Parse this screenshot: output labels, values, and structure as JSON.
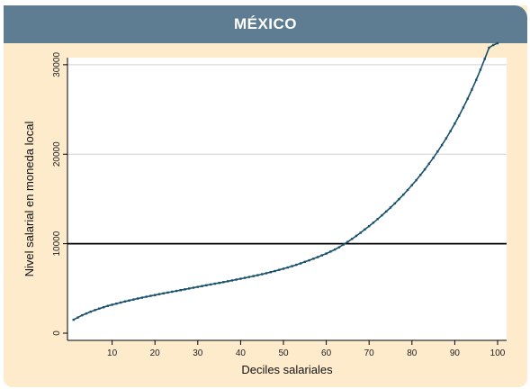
{
  "header": {
    "title": "MÉXICO"
  },
  "colors": {
    "header_bg": "#5e7d93",
    "panel_bg": "#fdebcc",
    "series": "#17506a",
    "reference_line": "#000000",
    "grid": "#d0d0d0"
  },
  "chart_data": {
    "type": "line",
    "title": "MÉXICO",
    "xlabel": "Deciles salariales",
    "ylabel": "Nivel salarial en moneda local",
    "xlim": [
      0,
      100
    ],
    "ylim": [
      0,
      32000
    ],
    "xticks": [
      10,
      20,
      30,
      40,
      50,
      60,
      70,
      80,
      90,
      100
    ],
    "yticks": [
      0,
      10000,
      20000,
      30000
    ],
    "grid": true,
    "reference_line_y": 10000,
    "series": [
      {
        "x": [
          1,
          2,
          3,
          4,
          5,
          6,
          7,
          8,
          9,
          10,
          11,
          12,
          13,
          14,
          15,
          16,
          17,
          18,
          19,
          20,
          21,
          22,
          23,
          24,
          25,
          26,
          27,
          28,
          29,
          30,
          31,
          32,
          33,
          34,
          35,
          36,
          37,
          38,
          39,
          40,
          41,
          42,
          43,
          44,
          45,
          46,
          47,
          48,
          49,
          50,
          51,
          52,
          53,
          54,
          55,
          56,
          57,
          58,
          59,
          60,
          61,
          62,
          63,
          64,
          65,
          66,
          67,
          68,
          69,
          70,
          71,
          72,
          73,
          74,
          75,
          76,
          77,
          78,
          79,
          80,
          81,
          82,
          83,
          84,
          85,
          86,
          87,
          88,
          89,
          90,
          91,
          92,
          93,
          94,
          95,
          96,
          97,
          98,
          99,
          100
        ],
        "values": [
          1500,
          1750,
          2000,
          2200,
          2400,
          2580,
          2750,
          2900,
          3050,
          3180,
          3300,
          3420,
          3540,
          3650,
          3760,
          3870,
          3970,
          4070,
          4170,
          4260,
          4360,
          4450,
          4540,
          4630,
          4720,
          4810,
          4900,
          4990,
          5080,
          5170,
          5260,
          5350,
          5440,
          5530,
          5620,
          5710,
          5800,
          5890,
          5990,
          6080,
          6180,
          6280,
          6380,
          6480,
          6590,
          6700,
          6820,
          6940,
          7070,
          7200,
          7340,
          7490,
          7640,
          7800,
          7970,
          8140,
          8320,
          8500,
          8700,
          8900,
          9120,
          9350,
          9600,
          9900,
          10200,
          10530,
          10870,
          11220,
          11590,
          11960,
          12350,
          12750,
          13170,
          13590,
          14040,
          14500,
          14980,
          15480,
          16000,
          16540,
          17100,
          17690,
          18300,
          18940,
          19600,
          20300,
          21020,
          21780,
          22580,
          23420,
          24300,
          25220,
          26200,
          27220,
          28300,
          29450,
          30650,
          31900,
          32200,
          32400
        ]
      }
    ]
  }
}
